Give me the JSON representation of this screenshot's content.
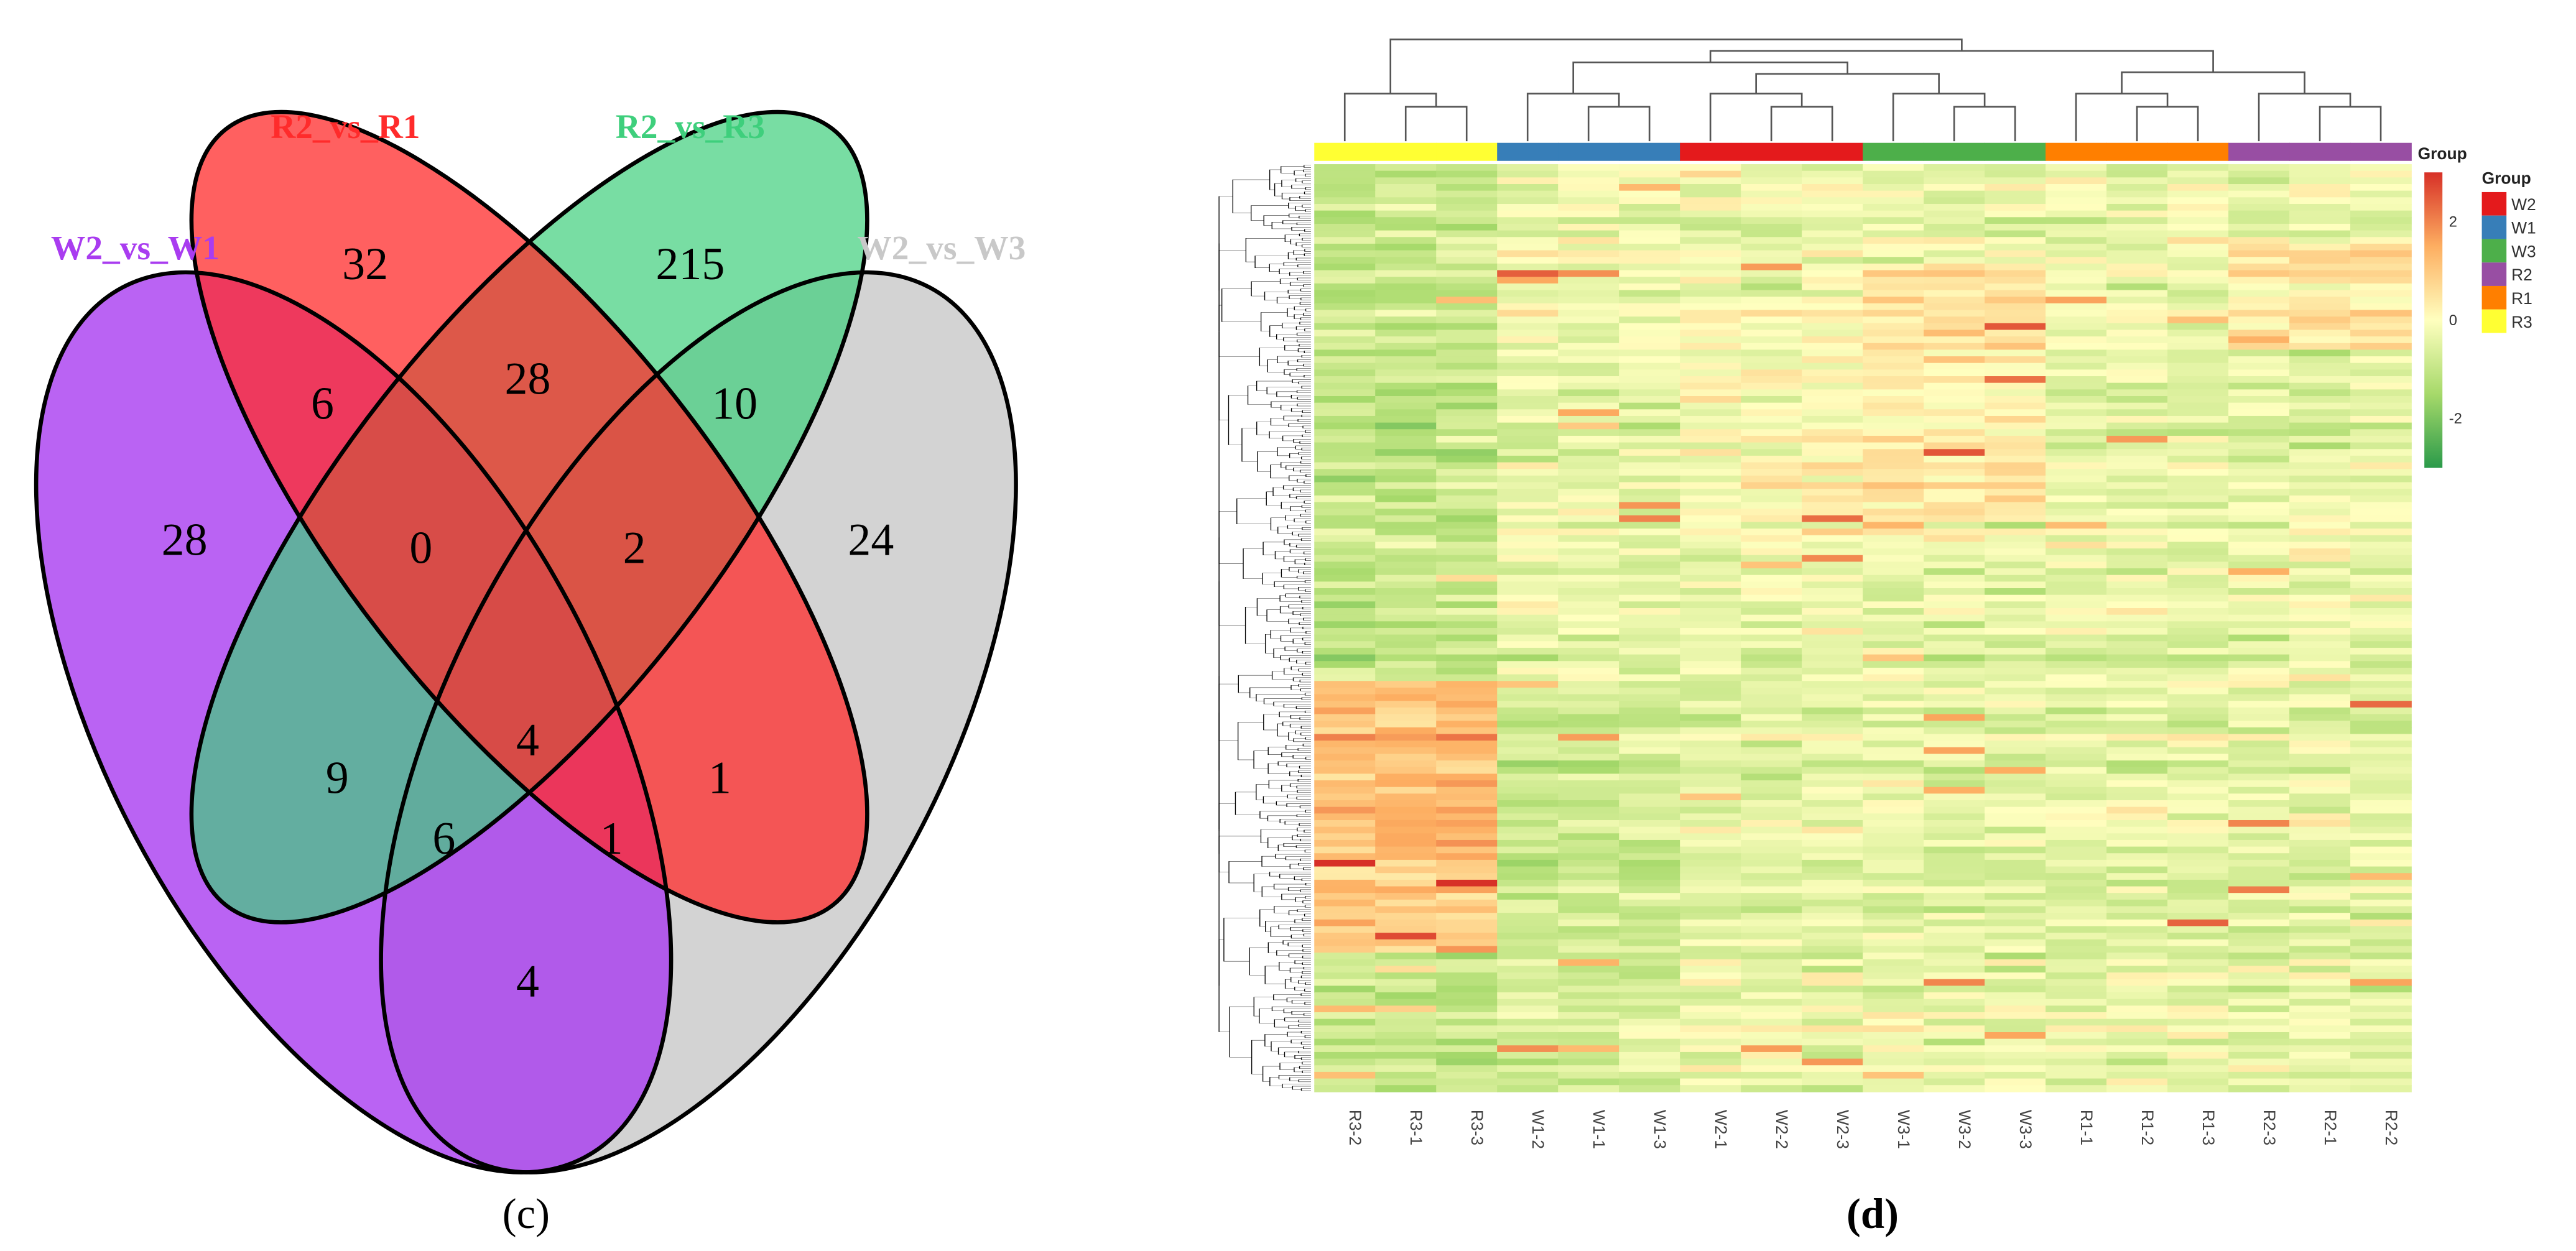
{
  "chart_data": [
    {
      "type": "venn",
      "panel_label": "(c)",
      "sets": [
        {
          "name": "W2_vs_W1",
          "color": "#a93cf0"
        },
        {
          "name": "R2_vs_R1",
          "color": "#ff2b2b"
        },
        {
          "name": "R2_vs_R3",
          "color": "#3ecf7c"
        },
        {
          "name": "W2_vs_W3",
          "color": "#c8c8c8"
        }
      ],
      "regions": [
        {
          "sets": [
            "W2_vs_W1"
          ],
          "value": 28
        },
        {
          "sets": [
            "R2_vs_R1"
          ],
          "value": 32
        },
        {
          "sets": [
            "R2_vs_R3"
          ],
          "value": 215
        },
        {
          "sets": [
            "W2_vs_W3"
          ],
          "value": 24
        },
        {
          "sets": [
            "W2_vs_W1",
            "R2_vs_R1"
          ],
          "value": 6
        },
        {
          "sets": [
            "R2_vs_R1",
            "R2_vs_R3"
          ],
          "value": 28
        },
        {
          "sets": [
            "R2_vs_R3",
            "W2_vs_W3"
          ],
          "value": 10
        },
        {
          "sets": [
            "W2_vs_W1",
            "R2_vs_R1",
            "R2_vs_R3"
          ],
          "value": 0
        },
        {
          "sets": [
            "R2_vs_R1",
            "R2_vs_R3",
            "W2_vs_W3"
          ],
          "value": 2
        },
        {
          "sets": [
            "W2_vs_W1",
            "R2_vs_R1",
            "R2_vs_R3",
            "W2_vs_W3"
          ],
          "value": 4
        },
        {
          "sets": [
            "W2_vs_W1",
            "R2_vs_R3"
          ],
          "value": 9
        },
        {
          "sets": [
            "R2_vs_R1",
            "W2_vs_W3"
          ],
          "value": 1
        },
        {
          "sets": [
            "W2_vs_W1",
            "R2_vs_R3",
            "W2_vs_W3"
          ],
          "value": 6
        },
        {
          "sets": [
            "W2_vs_W1",
            "R2_vs_R1",
            "W2_vs_W3"
          ],
          "value": 1
        },
        {
          "sets": [
            "W2_vs_W1",
            "W2_vs_W3"
          ],
          "value": 4
        }
      ]
    },
    {
      "type": "heatmap",
      "panel_label": "(d)",
      "columns": [
        "R3-2",
        "R3-1",
        "R3-3",
        "W1-2",
        "W1-1",
        "W1-3",
        "W2-1",
        "W2-2",
        "W2-3",
        "W3-1",
        "W3-2",
        "W3-3",
        "R1-1",
        "R1-2",
        "R1-3",
        "R2-3",
        "R2-1",
        "R2-2"
      ],
      "column_groups": [
        "R3",
        "R3",
        "R3",
        "W1",
        "W1",
        "W1",
        "W2",
        "W2",
        "W2",
        "W3",
        "W3",
        "W3",
        "R1",
        "R1",
        "R1",
        "R2",
        "R2",
        "R2"
      ],
      "annotation_title": "Group",
      "color_scale": {
        "range": [
          -3,
          3
        ],
        "ticks": [
          "2",
          "0",
          "-2"
        ],
        "tick_values": [
          2,
          0,
          -2
        ],
        "low": "#2a9a4a",
        "mid": "#ffffbf",
        "high": "#d73027"
      },
      "legend": {
        "title": "Group",
        "items": [
          {
            "label": "W2",
            "color": "#e41a1c"
          },
          {
            "label": "W1",
            "color": "#377eb8"
          },
          {
            "label": "W3",
            "color": "#4daf4a"
          },
          {
            "label": "R2",
            "color": "#984ea3"
          },
          {
            "label": "R1",
            "color": "#ff7f00"
          },
          {
            "label": "R3",
            "color": "#ffff33"
          }
        ]
      },
      "row_dendrogram": true,
      "column_dendrogram": true
    }
  ]
}
